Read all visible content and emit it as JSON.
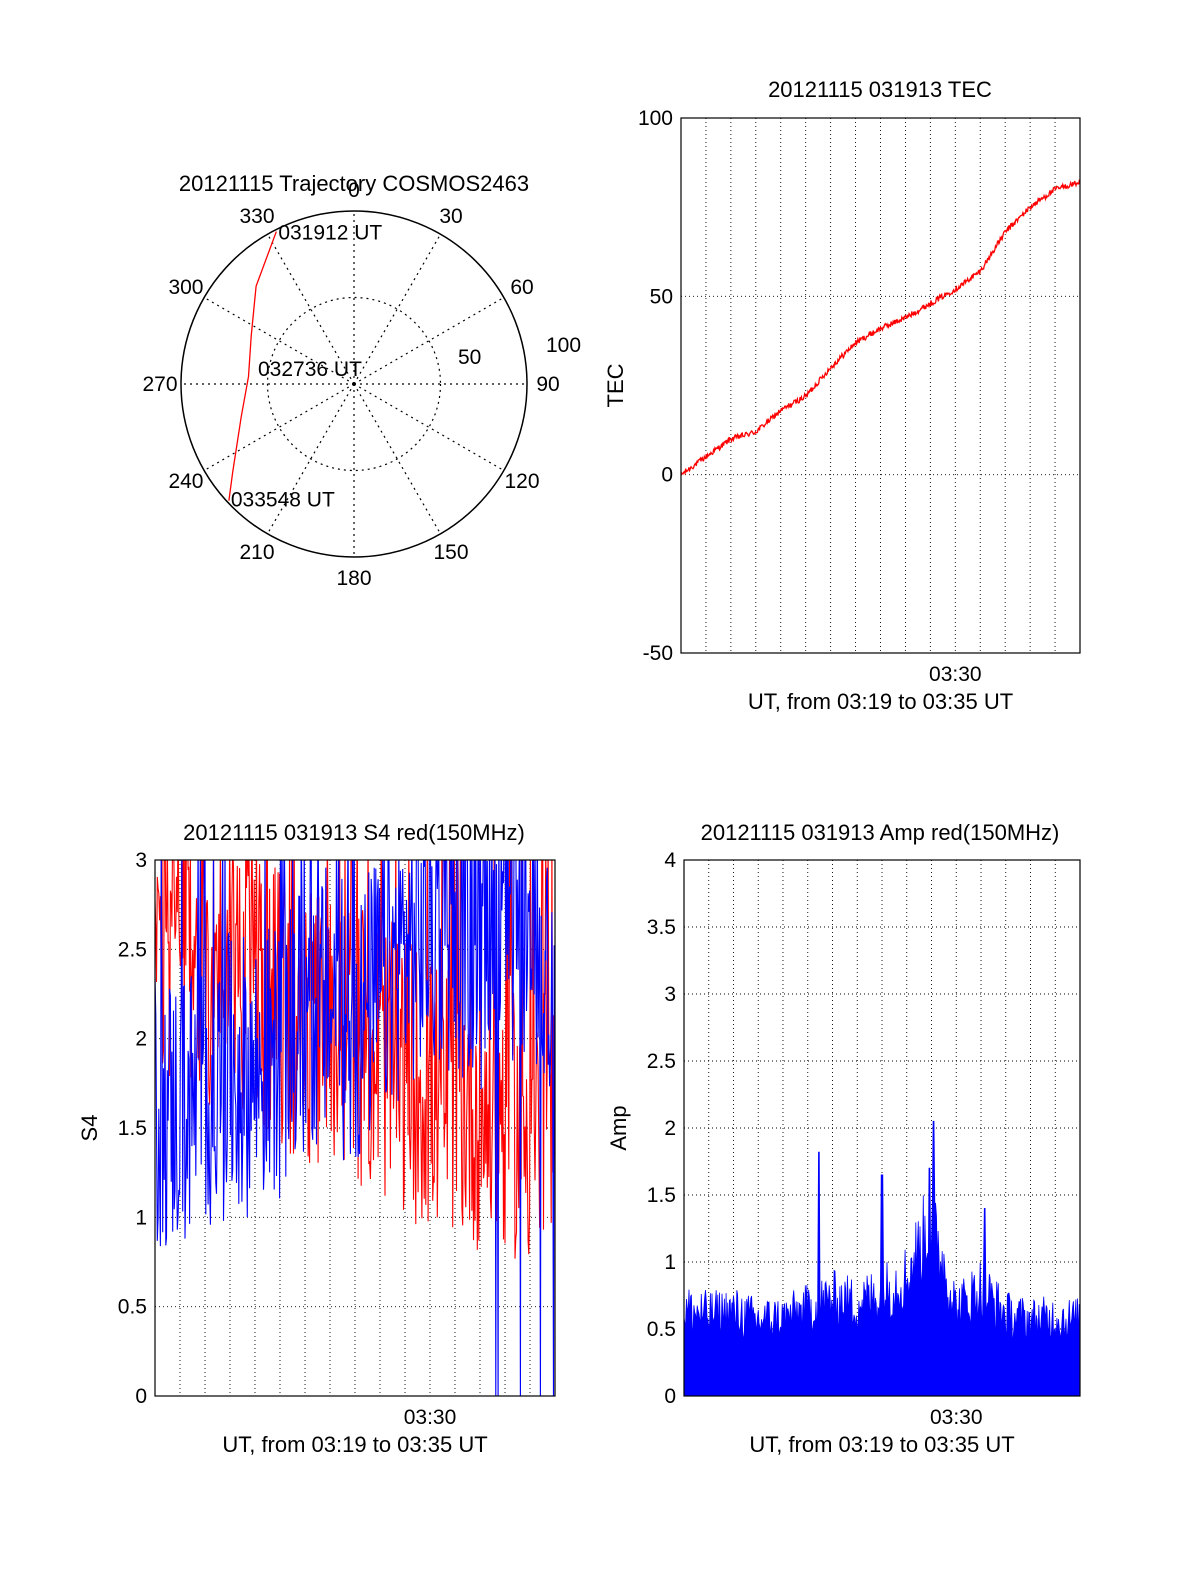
{
  "colors": {
    "red": "#ff0000",
    "blue": "#0000ff",
    "axis": "#000000"
  },
  "chart_data": [
    {
      "type": "polar",
      "title": "20121115 Trajectory COSMOS2463",
      "angle_ticks": [
        "0",
        "30",
        "60",
        "90",
        "120",
        "150",
        "180",
        "210",
        "240",
        "270",
        "300",
        "330"
      ],
      "radius_ticks": [
        "50",
        "100"
      ],
      "track": {
        "start_label": "031912 UT",
        "mid_label": "032736 UT",
        "end_label": "033548 UT",
        "points": [
          {
            "az": 333,
            "el": 1
          },
          {
            "az": 315,
            "el": 18
          },
          {
            "az": 295,
            "el": 31
          },
          {
            "az": 274,
            "el": 35
          },
          {
            "az": 254,
            "el": 29
          },
          {
            "az": 234,
            "el": 12
          },
          {
            "az": 227,
            "el": 1
          }
        ]
      }
    },
    {
      "type": "line",
      "title": "20121115 031913 TEC",
      "xlabel": "UT, from 03:19 to 03:35 UT",
      "ylabel": "TEC",
      "ylim": [
        -50,
        100
      ],
      "yticks": [
        "-50",
        "0",
        "50",
        "100"
      ],
      "xtick_label": "03:30",
      "series": [
        {
          "x": [
            0,
            1,
            2,
            3,
            4,
            5,
            6,
            7,
            8,
            9,
            10,
            11,
            12,
            13,
            14,
            15,
            16
          ],
          "values": [
            0,
            5,
            10,
            12,
            18,
            22,
            30,
            37,
            41,
            44,
            48,
            52,
            57,
            68,
            75,
            80,
            82
          ]
        }
      ]
    },
    {
      "type": "line",
      "title": "20121115 031913 S4 red(150MHz)",
      "xlabel": "UT, from 03:19 to 03:35 UT",
      "ylabel": "S4",
      "ylim": [
        0,
        3
      ],
      "yticks": [
        "0",
        "0.5",
        "1",
        "1.5",
        "2",
        "2.5",
        "3"
      ],
      "xtick_label": "03:30",
      "series": [
        {
          "x": [
            0,
            1,
            2,
            3,
            4,
            5,
            6,
            7,
            8,
            9,
            10,
            11,
            12,
            13,
            14,
            15,
            16
          ],
          "values": [
            2.4,
            2.6,
            2.4,
            2.5,
            2.3,
            2.2,
            2.0,
            2.1,
            2.0,
            1.9,
            1.8,
            1.7,
            1.7,
            1.6,
            1.6,
            1.5,
            1.5
          ]
        },
        {
          "x": [
            0,
            1,
            2,
            3,
            4,
            5,
            6,
            7,
            8,
            9,
            10,
            11,
            12,
            13,
            14,
            15,
            16
          ],
          "values": [
            1.6,
            1.6,
            1.7,
            1.8,
            1.8,
            1.9,
            2.1,
            2.2,
            2.0,
            2.3,
            2.5,
            2.6,
            2.6,
            2.5,
            2.6,
            2.5,
            2.4
          ]
        }
      ]
    },
    {
      "type": "bar",
      "title": "20121115 031913 Amp red(150MHz)",
      "xlabel": "UT, from 03:19 to 03:35 UT",
      "ylabel": "Amp",
      "ylim": [
        0,
        4
      ],
      "yticks": [
        "0",
        "0.5",
        "1",
        "1.5",
        "2",
        "2.5",
        "3",
        "3.5",
        "4"
      ],
      "xtick_label": "03:30",
      "series": [
        {
          "x": [
            0,
            1,
            2,
            3,
            4,
            5,
            6,
            7,
            8,
            9,
            10,
            11,
            12,
            13,
            14,
            15,
            16
          ],
          "values": [
            0.8,
            0.75,
            0.78,
            0.7,
            0.72,
            0.8,
            0.9,
            0.85,
            0.95,
            1.1,
            1.6,
            0.8,
            1.0,
            0.75,
            0.7,
            0.72,
            0.7
          ]
        }
      ]
    }
  ]
}
